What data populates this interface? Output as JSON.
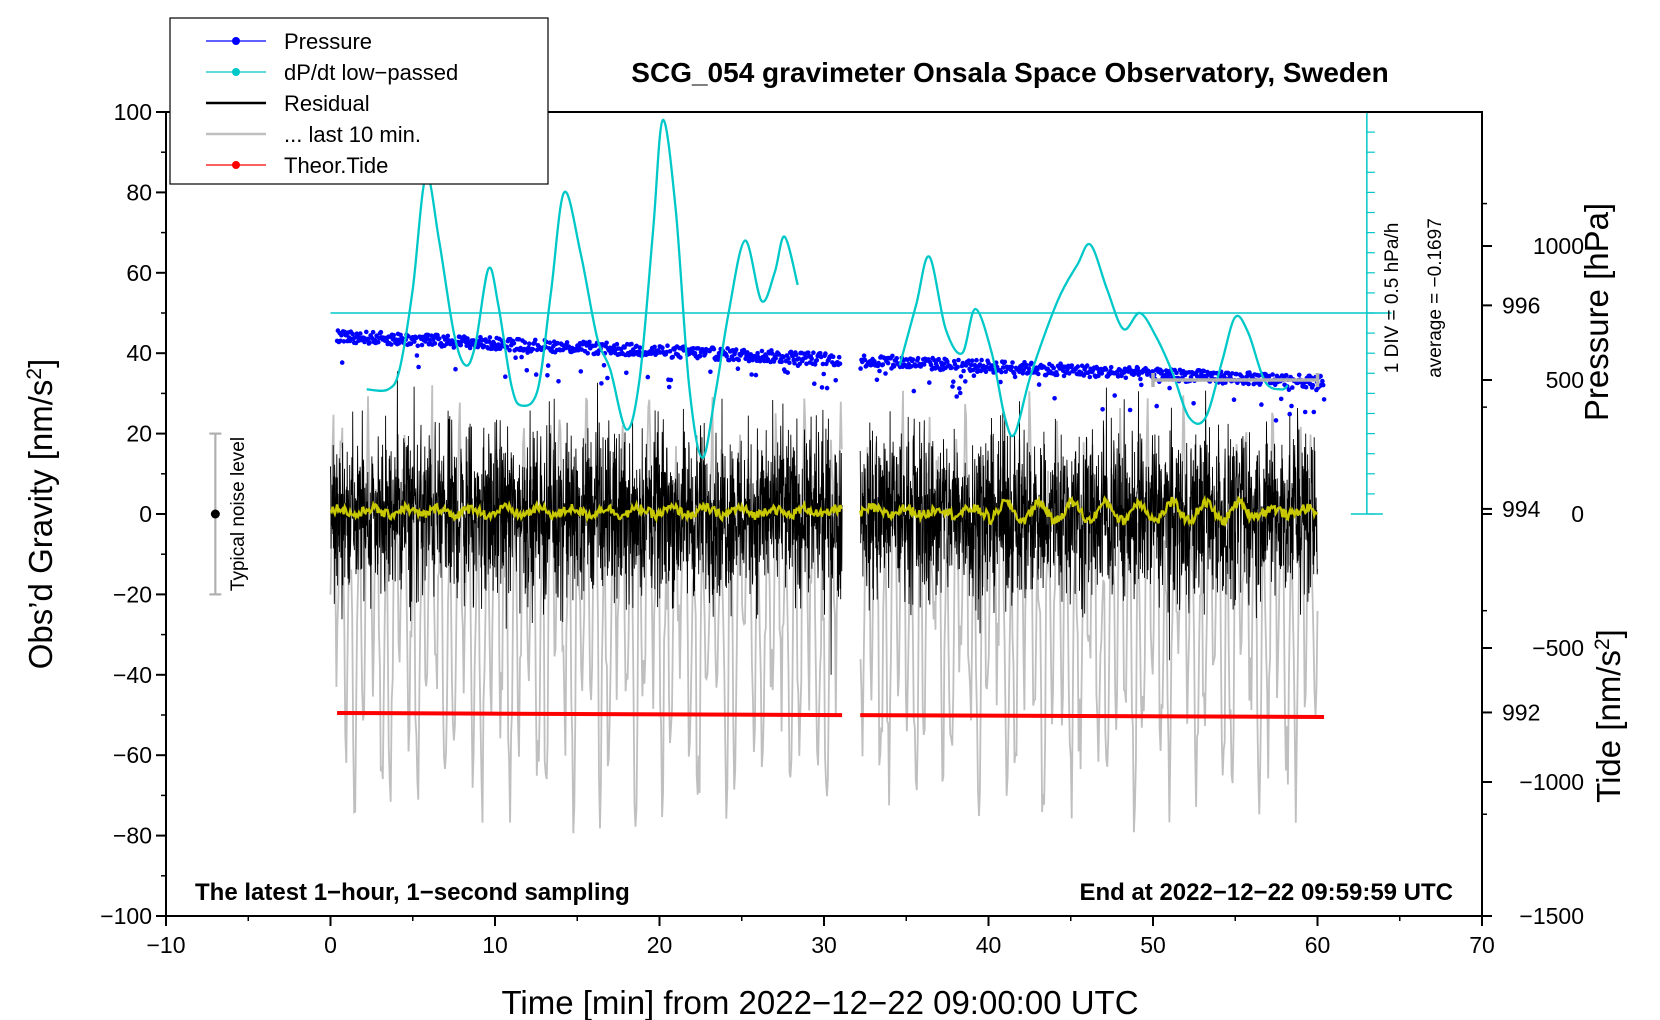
{
  "chart_data": {
    "type": "line",
    "title": "SCG_054 gravimeter Onsala Space Observatory, Sweden",
    "xlabel": "Time [min] from 2022−12−22 09:00:00 UTC",
    "ylabel_left": "Obs’d Gravity [nm/s",
    "ylabel_left_sup": "2",
    "ylabel_left_end": "]",
    "ylabel_right_pressure": "Pressure [hPa]",
    "ylabel_right_tide": "Tide [nm/s",
    "ylabel_right_tide_sup": "2",
    "ylabel_right_tide_end": "]",
    "xlim": [
      -10,
      70
    ],
    "ylim": [
      -100,
      100
    ],
    "x_ticks": [
      "−10",
      "0",
      "10",
      "20",
      "30",
      "40",
      "50",
      "60",
      "70"
    ],
    "y_ticks": [
      "−100",
      "−80",
      "−60",
      "−40",
      "−20",
      "0",
      "20",
      "40",
      "60",
      "80",
      "100"
    ],
    "pressure_axis": {
      "range": [
        990.0,
        997.9
      ],
      "ticks": [
        "992",
        "994",
        "996"
      ]
    },
    "tide_axis": {
      "range": [
        -1500,
        1500
      ],
      "ticks": [
        "−1500",
        "−1000",
        "−500",
        "0",
        "500",
        "1000"
      ]
    },
    "annotation_left": "The latest 1−hour, 1−second sampling",
    "annotation_right": "End at 2022−12−22 09:59:59 UTC",
    "noise_label": "Typical noise level",
    "noise_range": [
      -20,
      20
    ],
    "scale_label_1": "1 DIV = 0.5 hPa/h",
    "scale_label_2": "average = −0.1697",
    "dpdt_average_level": 50,
    "gap_minutes": [
      31.1,
      32.2
    ],
    "series": [
      {
        "name": "Pressure",
        "color": "#0000ff",
        "axis": "pressure",
        "start_hpa": 995.7,
        "end_hpa": 995.25
      },
      {
        "name": "dP/dt low−passed",
        "color": "#00c8c8",
        "axis": "gravity",
        "x": [
          2.2,
          3.5,
          4.2,
          5.0,
          5.8,
          6.6,
          7.5,
          8.2,
          8.8,
          9.6,
          10.2,
          11.0,
          11.6,
          12.6,
          13.4,
          14.2,
          15.2,
          16.2,
          17.0,
          18.0,
          18.8,
          19.6,
          20.2,
          21.0,
          21.8,
          22.6,
          23.4,
          24.2,
          25.2,
          26.2,
          27.0,
          27.6,
          28.4
        ],
        "values": [
          31,
          31,
          36,
          56,
          84,
          68,
          45,
          37,
          42,
          61,
          52,
          32,
          27,
          31,
          55,
          80,
          65,
          44,
          36,
          21,
          34,
          70,
          98,
          75,
          32,
          14,
          30,
          50,
          68,
          53,
          60,
          69,
          57
        ]
      },
      {
        "name": "dP/dt low−passed (after gap)",
        "color": "#00c8c8",
        "axis": "gravity",
        "x": [
          34.6,
          35.6,
          36.4,
          37.4,
          38.4,
          39.2,
          40.2,
          41.0,
          41.6,
          42.6,
          44.2,
          45.4,
          46.2,
          47.2,
          48.2,
          49.2,
          50.2,
          51.2,
          52.2,
          53.2,
          54.2,
          55.0,
          55.8,
          56.8,
          57.8,
          58.2
        ],
        "values": [
          37,
          52,
          64,
          46,
          40,
          51,
          40,
          24,
          20,
          35,
          53,
          62,
          67,
          56,
          46,
          50,
          44,
          35,
          24,
          24,
          38,
          49,
          45,
          33,
          31,
          32
        ]
      },
      {
        "name": "Residual",
        "color": "#000000",
        "axis": "gravity",
        "start_min": 0,
        "end_min": 60,
        "amplitude": 25
      },
      {
        "name": "... last 10 min.",
        "color": "#bfbfbf",
        "axis": "tide",
        "start_min": 0,
        "end_min": 60
      },
      {
        "name": "Theor.Tide",
        "color": "#ff0000",
        "axis": "gravity",
        "start_value": -49.5,
        "end_value": -50.5
      },
      {
        "name": "Residual mean",
        "color": "#c8c800",
        "axis": "gravity",
        "start_min": 0,
        "end_min": 60
      }
    ],
    "legend": [
      {
        "label": "Pressure",
        "color": "#0000ff",
        "marker": true
      },
      {
        "label": "dP/dt low−passed",
        "color": "#00c8c8",
        "marker": true
      },
      {
        "label": "Residual",
        "color": "#000000",
        "marker": false
      },
      {
        "label": "... last 10 min.",
        "color": "#bfbfbf",
        "marker": false
      },
      {
        "label": "Theor.Tide",
        "color": "#ff0000",
        "marker": true
      }
    ]
  }
}
